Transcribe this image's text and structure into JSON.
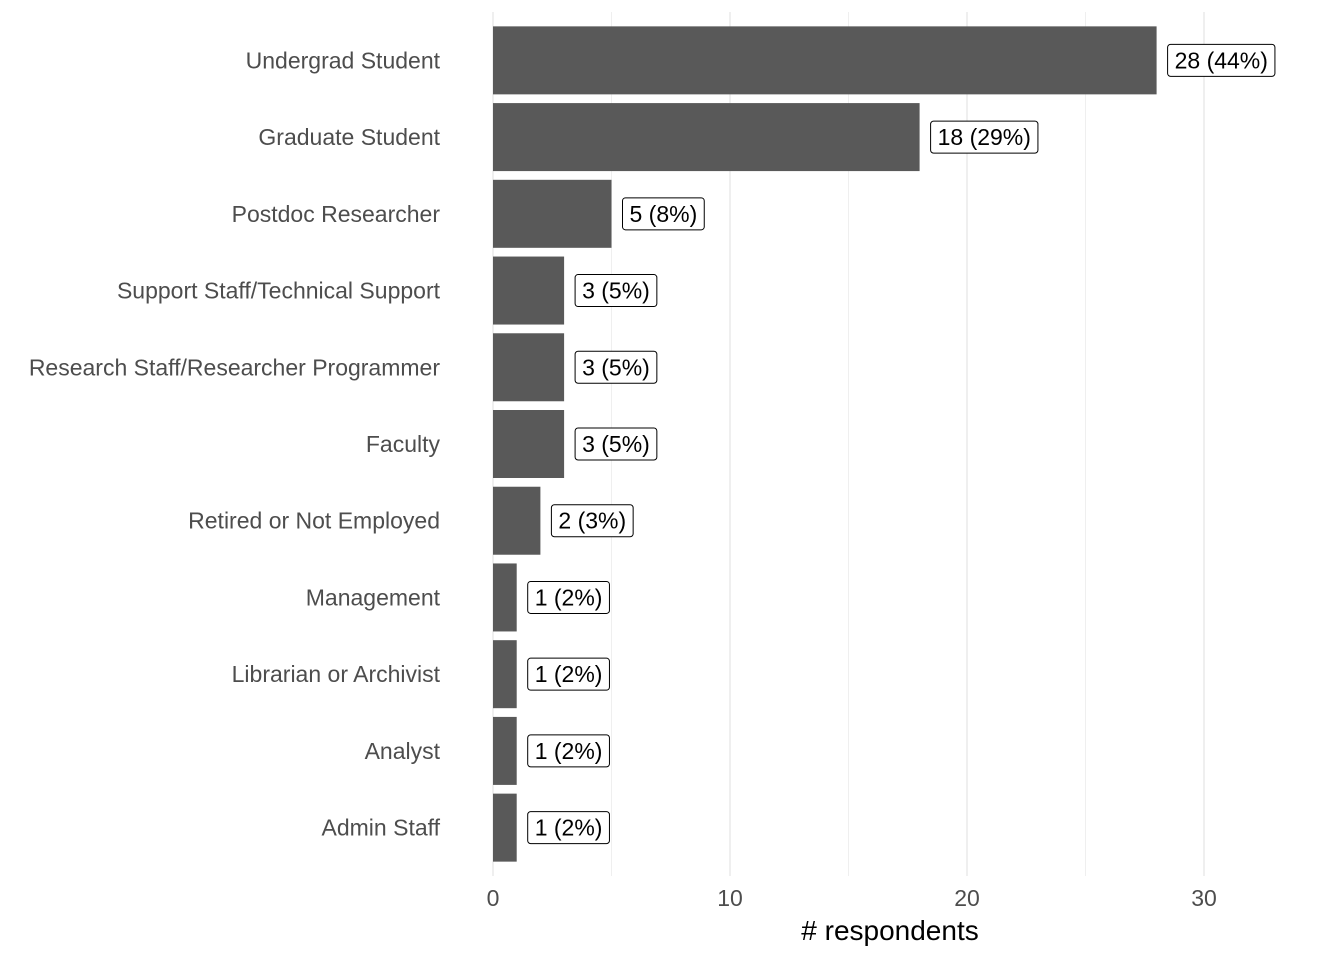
{
  "chart_data": {
    "type": "bar",
    "orientation": "horizontal",
    "categories": [
      "Undergrad Student",
      "Graduate Student",
      "Postdoc Researcher",
      "Support Staff/Technical Support",
      "Research Staff/Researcher Programmer",
      "Faculty",
      "Retired or Not Employed",
      "Management",
      "Librarian or Archivist",
      "Analyst",
      "Admin Staff"
    ],
    "values": [
      28,
      18,
      5,
      3,
      3,
      3,
      2,
      1,
      1,
      1,
      1
    ],
    "data_labels": [
      "28 (44%)",
      "18 (29%)",
      "5 (8%)",
      "3 (5%)",
      "3 (5%)",
      "3 (5%)",
      "2 (3%)",
      "1 (2%)",
      "1 (2%)",
      "1 (2%)",
      "1 (2%)"
    ],
    "title": "",
    "xlabel": "# respondents",
    "ylabel": "",
    "xlim": [
      0,
      32.5
    ],
    "x_ticks": [
      0,
      10,
      20,
      30
    ],
    "x_tick_labels": [
      "0",
      "10",
      "20",
      "30"
    ],
    "grid": true,
    "legend": "none",
    "bar_color": "#595959",
    "grid_color": "#ebebeb"
  }
}
